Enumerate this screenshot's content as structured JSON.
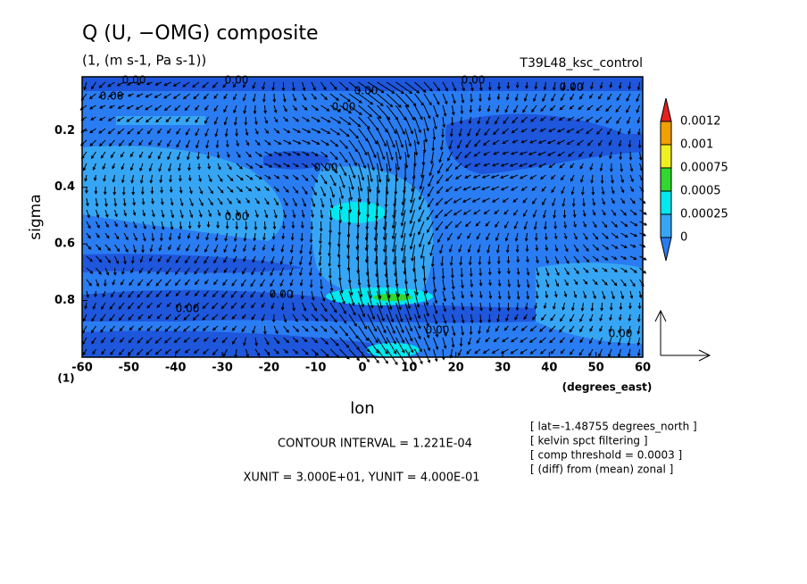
{
  "chart_data": {
    "type": "contour",
    "title": "Q (U, −OMG) composite",
    "subtitle": "(1, (m s-1, Pa s-1))",
    "run_label": "T39L48_ksc_control",
    "xlabel": "lon",
    "x_units": "(degrees_east)",
    "ylabel": "sigma",
    "y_units": "(1)",
    "xlim": [
      -60,
      60
    ],
    "xticks": [
      -60,
      -50,
      -40,
      -30,
      -20,
      -10,
      0,
      10,
      20,
      30,
      40,
      50,
      60
    ],
    "ylim": [
      1.0,
      0.01
    ],
    "yticks": [
      0.2,
      0.4,
      0.6,
      0.8
    ],
    "colorbar": {
      "levels": [
        0,
        0.00025,
        0.0005,
        0.00075,
        0.001,
        0.0012
      ],
      "colors": [
        "#2a7cf2",
        "#36a6f4",
        "#00e8f0",
        "#30d830",
        "#f0f020",
        "#f0a000",
        "#e82020"
      ]
    },
    "contour_labels": [
      "0.00",
      "0.00",
      "0.00",
      "0.00",
      "0.00",
      "0.00",
      "0.00",
      "0.00",
      "0.00",
      "0.00",
      "0.00",
      "0.00",
      "0.00"
    ],
    "footer": [
      "CONTOUR INTERVAL = 1.221E-04",
      "XUNIT = 3.000E+01, YUNIT = 4.000E-01"
    ],
    "notes": [
      "[ lat=-1.48755 degrees_north ]",
      "[ kelvin spct filtering ]",
      "[ comp threshold = 0.0003 ]",
      "[ (diff) from (mean) zonal ]"
    ]
  }
}
